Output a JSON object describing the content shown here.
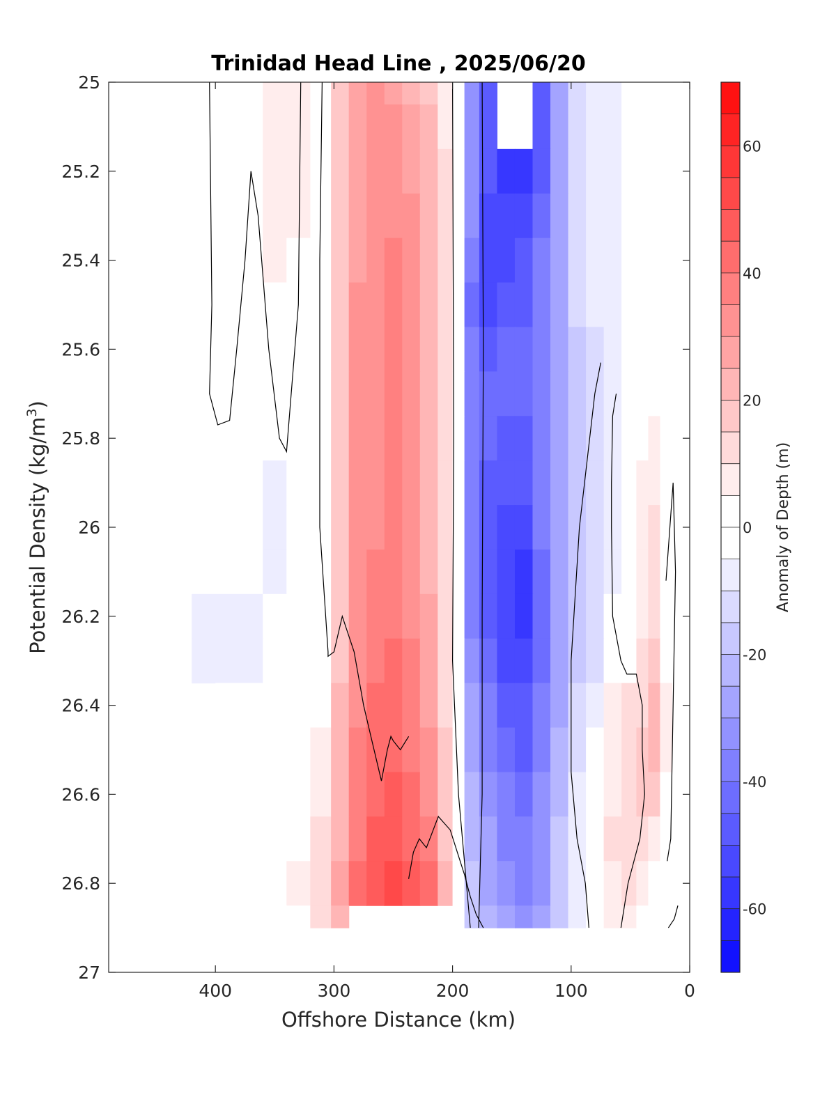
{
  "chart_data": {
    "type": "heatmap",
    "title": "Trinidad Head Line , 2025/06/20",
    "xlabel": "Offshore Distance (km)",
    "ylabel_parts": {
      "main": "Potential Density (kg/m",
      "sup": "3",
      "close": ")"
    },
    "colorbar_label": "Anomaly of Depth (m)",
    "xlim": [
      490,
      0
    ],
    "ylim": [
      27,
      25
    ],
    "x_ticks": [
      400,
      300,
      200,
      100,
      0
    ],
    "x_tick_labels": [
      "400",
      "300",
      "200",
      "100",
      "0"
    ],
    "y_ticks": [
      25,
      25.2,
      25.4,
      25.6,
      25.8,
      26,
      26.2,
      26.4,
      26.6,
      26.8,
      27
    ],
    "y_tick_labels": [
      "25",
      "25.2",
      "25.4",
      "25.6",
      "25.8",
      "26",
      "26.2",
      "26.4",
      "26.6",
      "26.8",
      "27"
    ],
    "colorbar": {
      "range": [
        -70,
        70
      ],
      "step": 5,
      "ticks": [
        60,
        40,
        20,
        0,
        -20,
        -40,
        -60
      ],
      "tick_labels": [
        "60",
        "40",
        "20",
        "0",
        "-20",
        "-40",
        "-60"
      ],
      "neg_color": "#0000ff",
      "pos_color": "#ff0000"
    },
    "x_stations": [
      410,
      390,
      370,
      350,
      330,
      310,
      295,
      280,
      265,
      250,
      235,
      220,
      205,
      195,
      185,
      170,
      155,
      140,
      125,
      110,
      95,
      80,
      65,
      50,
      40,
      30,
      20
    ],
    "y_levels": [
      25,
      25.1,
      25.2,
      25.3,
      25.4,
      25.5,
      25.6,
      25.7,
      25.8,
      25.9,
      26,
      26.1,
      26.2,
      26.3,
      26.4,
      26.5,
      26.6,
      26.7,
      26.8,
      26.9
    ],
    "anomaly_depth_m": [
      [
        -3,
        0,
        3,
        8,
        6,
        3,
        15,
        25,
        30,
        28,
        24,
        18,
        8,
        0,
        -30,
        -45,
        null,
        null,
        -45,
        -25,
        -12,
        -8,
        -6,
        -3,
        null,
        null,
        null
      ],
      [
        -3,
        0,
        3,
        8,
        6,
        3,
        15,
        25,
        30,
        30,
        26,
        20,
        8,
        0,
        -30,
        -45,
        null,
        null,
        -45,
        -25,
        -12,
        -8,
        -6,
        -3,
        null,
        null,
        null
      ],
      [
        -3,
        0,
        3,
        8,
        6,
        3,
        15,
        26,
        30,
        32,
        28,
        20,
        10,
        0,
        -30,
        -45,
        -55,
        -55,
        -45,
        -25,
        -12,
        -8,
        -6,
        -3,
        null,
        null,
        null
      ],
      [
        null,
        0,
        3,
        6,
        5,
        3,
        16,
        28,
        32,
        34,
        30,
        22,
        10,
        0,
        -32,
        -50,
        -52,
        -50,
        -40,
        -25,
        -12,
        -8,
        -6,
        -3,
        null,
        null,
        null
      ],
      [
        null,
        0,
        2,
        5,
        4,
        3,
        18,
        28,
        33,
        35,
        31,
        22,
        10,
        0,
        -35,
        -52,
        -50,
        -48,
        -38,
        -25,
        -12,
        -8,
        -6,
        -3,
        null,
        null,
        null
      ],
      [
        null,
        0,
        1,
        3,
        2,
        3,
        18,
        30,
        34,
        35,
        32,
        24,
        12,
        0,
        -40,
        -50,
        -45,
        -45,
        -35,
        -25,
        -12,
        -8,
        -6,
        -3,
        null,
        null,
        null
      ],
      [
        null,
        0,
        0,
        0,
        0,
        2,
        18,
        30,
        34,
        36,
        32,
        24,
        12,
        0,
        -38,
        -45,
        -42,
        -42,
        -35,
        -25,
        -15,
        -10,
        -6,
        -3,
        null,
        null,
        null
      ],
      [
        null,
        0,
        -2,
        -3,
        -2,
        0,
        18,
        30,
        34,
        38,
        32,
        24,
        12,
        0,
        -35,
        -42,
        -42,
        -42,
        -35,
        -25,
        -15,
        -10,
        -6,
        -3,
        0,
        0,
        null
      ],
      [
        null,
        0,
        -3,
        -4,
        -3,
        -1,
        18,
        30,
        34,
        36,
        32,
        24,
        12,
        0,
        -35,
        -42,
        -45,
        -45,
        -35,
        -25,
        -15,
        -10,
        -6,
        -3,
        2,
        5,
        0
      ],
      [
        null,
        0,
        -4,
        -5,
        -4,
        -2,
        16,
        30,
        34,
        35,
        32,
        24,
        12,
        0,
        -35,
        -45,
        -48,
        -48,
        -35,
        -25,
        -15,
        -10,
        -6,
        -3,
        5,
        8,
        2
      ],
      [
        null,
        0,
        -4,
        -5,
        -4,
        -2,
        16,
        30,
        34,
        35,
        32,
        24,
        12,
        0,
        -35,
        -45,
        -50,
        -50,
        -38,
        -25,
        -15,
        -10,
        -6,
        -3,
        5,
        10,
        3
      ],
      [
        null,
        0,
        -4,
        -5,
        -4,
        -2,
        16,
        30,
        35,
        36,
        33,
        24,
        12,
        0,
        -35,
        -45,
        -52,
        -55,
        -40,
        -25,
        -15,
        -10,
        -6,
        -2,
        8,
        12,
        3
      ],
      [
        -6,
        -5,
        -5,
        -3,
        -1,
        0,
        18,
        32,
        36,
        38,
        34,
        26,
        12,
        0,
        -35,
        -45,
        -52,
        -55,
        -40,
        -25,
        -15,
        -10,
        -4,
        0,
        8,
        14,
        3
      ],
      [
        -6,
        -6,
        -5,
        -2,
        0,
        0,
        18,
        32,
        38,
        40,
        35,
        26,
        14,
        0,
        -32,
        -42,
        -50,
        -52,
        -40,
        -25,
        -15,
        -10,
        -2,
        2,
        10,
        16,
        4
      ],
      [
        null,
        -4,
        -3,
        -1,
        0,
        0,
        20,
        34,
        40,
        42,
        36,
        28,
        14,
        0,
        -28,
        -38,
        -45,
        -48,
        -38,
        -25,
        -12,
        -5,
        5,
        10,
        14,
        20,
        5
      ],
      [
        0,
        0,
        0,
        0,
        0,
        5,
        20,
        35,
        42,
        44,
        38,
        30,
        15,
        0,
        -25,
        -35,
        -42,
        -45,
        -35,
        -22,
        -10,
        0,
        8,
        12,
        16,
        22,
        5
      ],
      [
        0,
        0,
        0,
        0,
        3,
        8,
        22,
        36,
        44,
        46,
        40,
        32,
        16,
        0,
        -22,
        -32,
        -38,
        -40,
        -32,
        -20,
        -8,
        0,
        8,
        12,
        15,
        18,
        4
      ],
      [
        0,
        0,
        0,
        0,
        4,
        10,
        24,
        38,
        46,
        48,
        44,
        36,
        18,
        0,
        -20,
        -28,
        -35,
        -38,
        -30,
        -18,
        -6,
        0,
        10,
        14,
        12,
        8,
        2
      ],
      [
        0,
        0,
        0,
        0,
        5,
        12,
        25,
        40,
        48,
        50,
        48,
        40,
        20,
        0,
        -18,
        -25,
        -32,
        -35,
        -30,
        -18,
        -6,
        0,
        8,
        10,
        8,
        4,
        0
      ],
      [
        -3,
        0,
        0,
        0,
        4,
        10,
        22,
        null,
        null,
        null,
        null,
        null,
        null,
        0,
        -15,
        -22,
        -28,
        -30,
        -28,
        -18,
        -6,
        0,
        6,
        5,
        3,
        2,
        0
      ]
    ],
    "zero_contours": [
      [
        [
          405,
          25
        ],
        [
          403,
          25.5
        ],
        [
          405,
          25.7
        ],
        [
          398,
          25.77
        ],
        [
          388,
          25.76
        ],
        [
          382,
          25.6
        ],
        [
          375,
          25.4
        ],
        [
          370,
          25.2
        ],
        [
          364,
          25.3
        ],
        [
          355,
          25.6
        ],
        [
          346,
          25.8
        ],
        [
          340,
          25.83
        ],
        [
          330,
          25.5
        ],
        [
          328,
          25
        ]
      ],
      [
        [
          310,
          25
        ],
        [
          312,
          25.4
        ],
        [
          312,
          26
        ],
        [
          305,
          26.28
        ],
        [
          305,
          26.29
        ],
        [
          300,
          26.28
        ],
        [
          293,
          26.2
        ],
        [
          283,
          26.28
        ],
        [
          275,
          26.4
        ],
        [
          268,
          26.48
        ],
        [
          260,
          26.57
        ],
        [
          255,
          26.5
        ],
        [
          252,
          26.47
        ],
        [
          250,
          26.48
        ],
        [
          244,
          26.5
        ],
        [
          237,
          26.47
        ]
      ],
      [
        [
          237,
          26.79
        ],
        [
          233,
          26.73
        ],
        [
          228,
          26.7
        ],
        [
          222,
          26.72
        ],
        [
          212,
          26.65
        ],
        [
          202,
          26.68
        ],
        [
          190,
          26.78
        ],
        [
          185,
          26.83
        ],
        [
          180,
          26.87
        ],
        [
          178,
          26.88
        ],
        [
          174,
          26.9
        ]
      ],
      [
        [
          200,
          25
        ],
        [
          199,
          25.8
        ],
        [
          200,
          26.3
        ],
        [
          195,
          26.6
        ],
        [
          185,
          26.9
        ]
      ],
      [
        [
          175,
          25
        ],
        [
          174,
          25.6
        ],
        [
          175,
          26.2
        ],
        [
          175,
          26.6
        ],
        [
          178,
          26.9
        ]
      ],
      [
        [
          20,
          26.12
        ],
        [
          14,
          25.9
        ],
        [
          12,
          26.1
        ],
        [
          14,
          26.4
        ],
        [
          16,
          26.7
        ],
        [
          19,
          26.75
        ]
      ],
      [
        [
          85,
          26.9
        ],
        [
          88,
          26.8
        ],
        [
          95,
          26.7
        ],
        [
          100,
          26.55
        ],
        [
          100,
          26.3
        ],
        [
          93,
          26.0
        ],
        [
          80,
          25.7
        ],
        [
          75,
          25.63
        ]
      ],
      [
        [
          58,
          26.9
        ],
        [
          52,
          26.8
        ],
        [
          42,
          26.7
        ],
        [
          38,
          26.6
        ],
        [
          40,
          26.5
        ],
        [
          40,
          26.4
        ],
        [
          45,
          26.33
        ],
        [
          53,
          26.33
        ],
        [
          58,
          26.3
        ],
        [
          65,
          26.2
        ],
        [
          66,
          26.0
        ],
        [
          66,
          25.9
        ],
        [
          65,
          25.75
        ],
        [
          62,
          25.7
        ]
      ],
      [
        [
          18,
          26.9
        ],
        [
          13,
          26.88
        ],
        [
          10,
          26.85
        ]
      ]
    ]
  }
}
